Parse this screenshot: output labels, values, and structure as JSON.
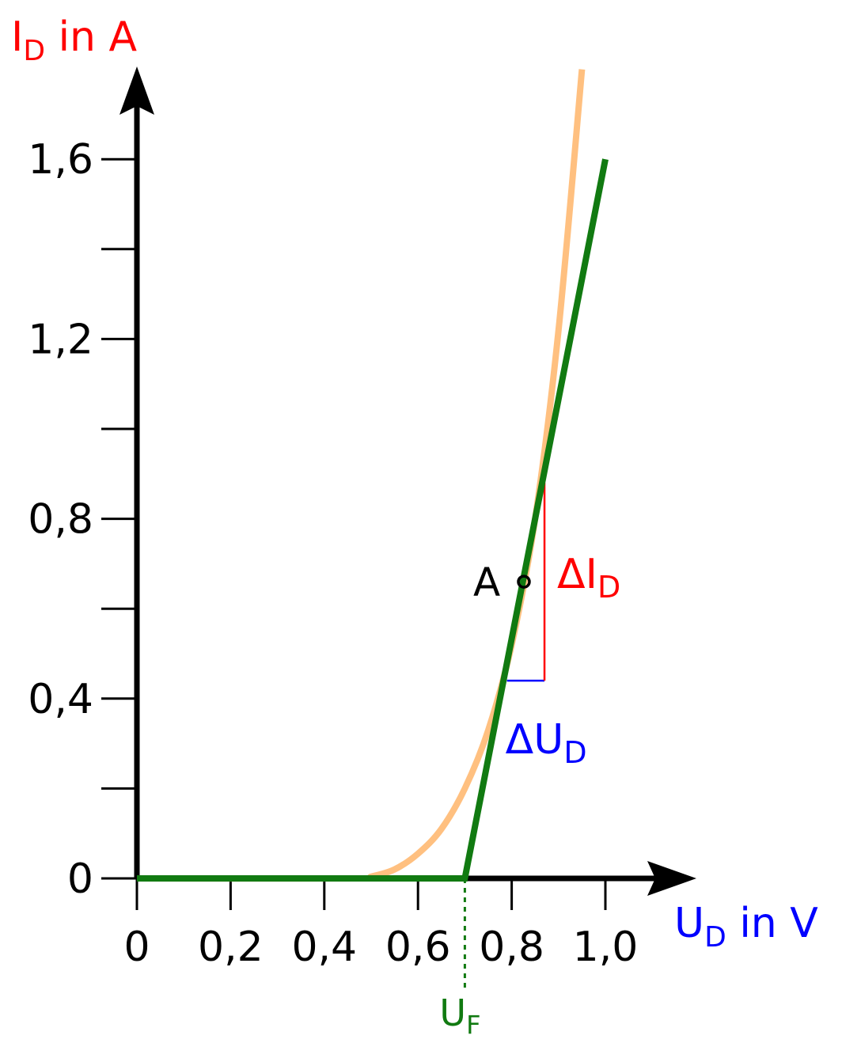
{
  "chart_data": {
    "type": "line",
    "y_axis": {
      "label_main": "I",
      "label_sub": "D",
      "label_unit": " in A",
      "color": "#ff0000",
      "ticks": [
        "0",
        "0,4",
        "0,8",
        "1,2",
        "1,6"
      ],
      "tick_values": [
        0,
        0.4,
        0.8,
        1.2,
        1.6
      ],
      "minor_tick_values": [
        0.2,
        0.6,
        1.0,
        1.4
      ],
      "range": [
        0,
        1.8
      ]
    },
    "x_axis": {
      "label_main": "U",
      "label_sub": "D",
      "label_unit": " in V",
      "color": "#0000ff",
      "ticks": [
        "0",
        "0,2",
        "0,4",
        "0,6",
        "0,8",
        "1,0"
      ],
      "tick_values": [
        0,
        0.2,
        0.4,
        0.6,
        0.8,
        1.0
      ],
      "range": [
        0,
        1.2
      ]
    },
    "series": [
      {
        "color": "#ffc080",
        "x": [
          0,
          0.47,
          0.5,
          0.55,
          0.6,
          0.65,
          0.7,
          0.75,
          0.8,
          0.85,
          0.9,
          0.95
        ],
        "y": [
          0,
          0,
          0.004,
          0.02,
          0.055,
          0.11,
          0.2,
          0.33,
          0.52,
          0.8,
          1.22,
          1.8
        ]
      },
      {
        "color": "#117a11",
        "x": [
          0,
          0.7,
          1.0
        ],
        "y": [
          0,
          0,
          1.6
        ]
      }
    ],
    "operating_point": {
      "label": "A",
      "x": 0.826,
      "y": 0.66
    },
    "slope_triangle": {
      "x_from": 0.79,
      "x_to": 0.87,
      "y_from": 0.44,
      "y_to": 0.88,
      "delta_i": {
        "prefix": "ΔI",
        "sub": "D",
        "color": "#ff0000"
      },
      "delta_u": {
        "prefix": "ΔU",
        "sub": "D",
        "color": "#0000ff"
      }
    },
    "threshold": {
      "x": 0.7,
      "label_main": "U",
      "label_sub": "F",
      "color": "#117a11"
    }
  }
}
